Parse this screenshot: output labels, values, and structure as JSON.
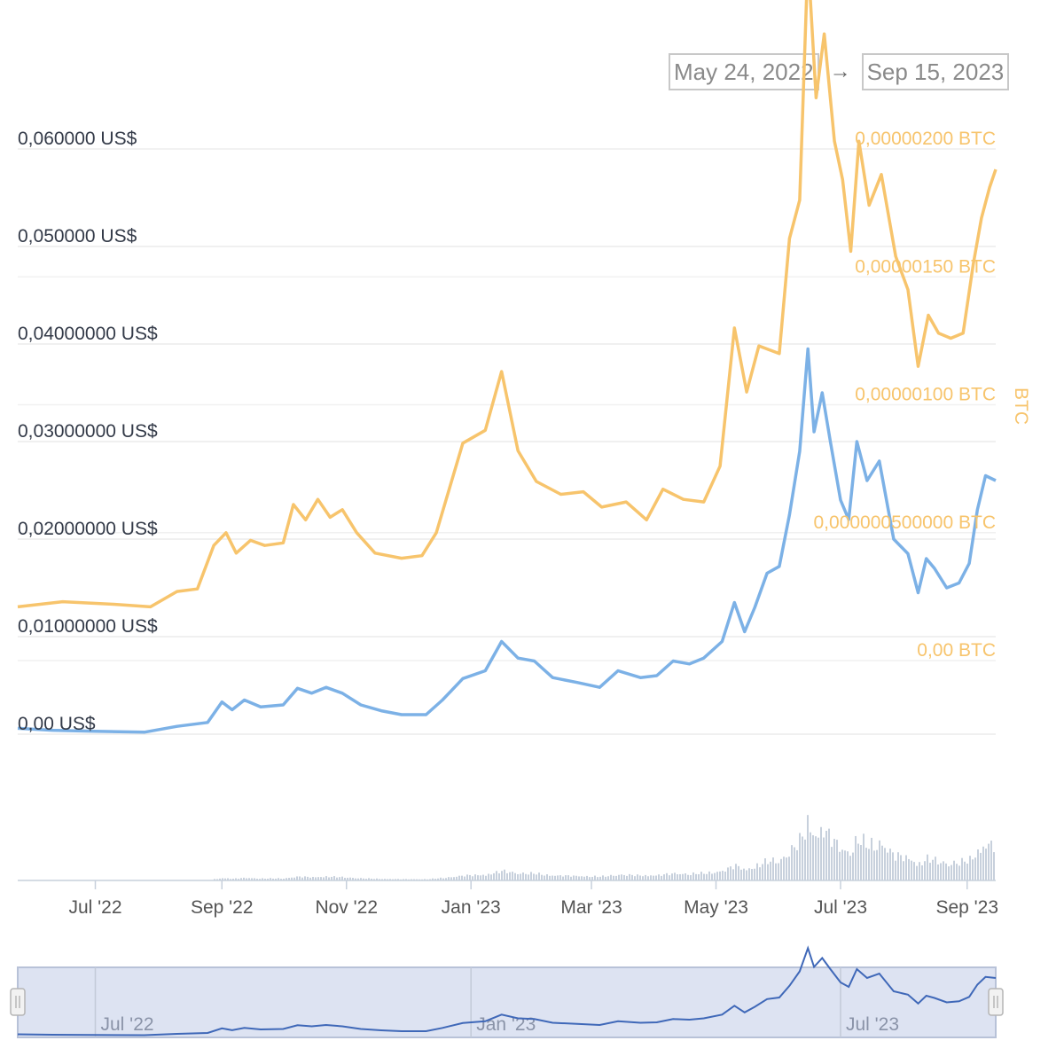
{
  "date_range": {
    "from": "May 24, 2022",
    "arrow": "→",
    "to": "Sep 15, 2023"
  },
  "colors": {
    "usd_line": "#7cb1e6",
    "btc_line": "#f7c46c",
    "volume": "#c7d0dc",
    "navigator": "#3f68b8"
  },
  "chart_data": {
    "type": "line",
    "x_range": [
      "2022-05-24",
      "2023-09-15"
    ],
    "y_left": {
      "label": "",
      "ticks": [
        "0,060000 US$",
        "0,050000 US$",
        "0,04000000 US$",
        "0,03000000 US$",
        "0,02000000 US$",
        "0,01000000 US$",
        "0,00 US$"
      ],
      "tick_values": [
        0.06,
        0.05,
        0.04,
        0.03,
        0.02,
        0.01,
        0
      ],
      "range": [
        0,
        0.06
      ]
    },
    "y_right": {
      "label": "BTC",
      "ticks": [
        "0,00000200 BTC",
        "0,00000150 BTC",
        "0,00000100 BTC",
        "0,000000500000 BTC",
        "0,00 BTC"
      ],
      "tick_values": [
        2e-06,
        1.5e-06,
        1e-06,
        5e-07,
        0
      ],
      "range": [
        0,
        2e-06
      ]
    },
    "x_ticks": [
      "Jul '22",
      "Sep '22",
      "Nov '22",
      "Jan '23",
      "Mar '23",
      "May '23",
      "Jul '23",
      "Sep '23"
    ],
    "x_tick_dates": [
      "2022-07-01",
      "2022-09-01",
      "2022-11-01",
      "2023-01-01",
      "2023-03-01",
      "2023-05-01",
      "2023-07-01",
      "2023-09-01"
    ],
    "series": [
      {
        "axis": "left",
        "points": [
          [
            "2022-05-24",
            0.0006
          ],
          [
            "2022-06-10",
            0.0004
          ],
          [
            "2022-07-01",
            0.0003
          ],
          [
            "2022-07-25",
            0.0002
          ],
          [
            "2022-08-10",
            0.0008
          ],
          [
            "2022-08-25",
            0.0012
          ],
          [
            "2022-09-01",
            0.0033
          ],
          [
            "2022-09-06",
            0.0025
          ],
          [
            "2022-09-12",
            0.0035
          ],
          [
            "2022-09-20",
            0.0028
          ],
          [
            "2022-10-01",
            0.003
          ],
          [
            "2022-10-08",
            0.0047
          ],
          [
            "2022-10-15",
            0.0042
          ],
          [
            "2022-10-22",
            0.0048
          ],
          [
            "2022-10-30",
            0.0042
          ],
          [
            "2022-11-08",
            0.003
          ],
          [
            "2022-11-18",
            0.0024
          ],
          [
            "2022-11-28",
            0.002
          ],
          [
            "2022-12-10",
            0.002
          ],
          [
            "2022-12-18",
            0.0035
          ],
          [
            "2022-12-28",
            0.0057
          ],
          [
            "2023-01-08",
            0.0065
          ],
          [
            "2023-01-16",
            0.0095
          ],
          [
            "2023-01-24",
            0.0078
          ],
          [
            "2023-02-01",
            0.0075
          ],
          [
            "2023-02-10",
            0.0058
          ],
          [
            "2023-02-22",
            0.0053
          ],
          [
            "2023-03-05",
            0.0048
          ],
          [
            "2023-03-14",
            0.0065
          ],
          [
            "2023-03-25",
            0.0058
          ],
          [
            "2023-04-02",
            0.006
          ],
          [
            "2023-04-10",
            0.0075
          ],
          [
            "2023-04-18",
            0.0072
          ],
          [
            "2023-04-25",
            0.0078
          ],
          [
            "2023-05-04",
            0.0095
          ],
          [
            "2023-05-10",
            0.0135
          ],
          [
            "2023-05-15",
            0.0105
          ],
          [
            "2023-05-20",
            0.013
          ],
          [
            "2023-05-26",
            0.0165
          ],
          [
            "2023-06-01",
            0.0172
          ],
          [
            "2023-06-06",
            0.0225
          ],
          [
            "2023-06-11",
            0.029
          ],
          [
            "2023-06-15",
            0.0395
          ],
          [
            "2023-06-18",
            0.031
          ],
          [
            "2023-06-22",
            0.035
          ],
          [
            "2023-06-26",
            0.03
          ],
          [
            "2023-07-01",
            0.024
          ],
          [
            "2023-07-05",
            0.022
          ],
          [
            "2023-07-09",
            0.03
          ],
          [
            "2023-07-14",
            0.026
          ],
          [
            "2023-07-20",
            0.028
          ],
          [
            "2023-07-27",
            0.02
          ],
          [
            "2023-08-03",
            0.0185
          ],
          [
            "2023-08-08",
            0.0145
          ],
          [
            "2023-08-12",
            0.018
          ],
          [
            "2023-08-16",
            0.017
          ],
          [
            "2023-08-22",
            0.015
          ],
          [
            "2023-08-28",
            0.0155
          ],
          [
            "2023-09-02",
            0.0175
          ],
          [
            "2023-09-06",
            0.023
          ],
          [
            "2023-09-10",
            0.0265
          ],
          [
            "2023-09-15",
            0.026
          ]
        ]
      },
      {
        "axis": "right",
        "points": [
          [
            "2022-05-24",
            2.1e-07
          ],
          [
            "2022-06-15",
            2.3e-07
          ],
          [
            "2022-07-10",
            2.2e-07
          ],
          [
            "2022-07-28",
            2.1e-07
          ],
          [
            "2022-08-10",
            2.7e-07
          ],
          [
            "2022-08-20",
            2.8e-07
          ],
          [
            "2022-08-28",
            4.5e-07
          ],
          [
            "2022-09-03",
            5e-07
          ],
          [
            "2022-09-08",
            4.2e-07
          ],
          [
            "2022-09-15",
            4.7e-07
          ],
          [
            "2022-09-22",
            4.5e-07
          ],
          [
            "2022-10-01",
            4.6e-07
          ],
          [
            "2022-10-06",
            6.1e-07
          ],
          [
            "2022-10-12",
            5.5e-07
          ],
          [
            "2022-10-18",
            6.3e-07
          ],
          [
            "2022-10-24",
            5.6e-07
          ],
          [
            "2022-10-30",
            5.9e-07
          ],
          [
            "2022-11-06",
            5e-07
          ],
          [
            "2022-11-15",
            4.2e-07
          ],
          [
            "2022-11-28",
            4e-07
          ],
          [
            "2022-12-08",
            4.1e-07
          ],
          [
            "2022-12-15",
            5e-07
          ],
          [
            "2022-12-28",
            8.5e-07
          ],
          [
            "2023-01-08",
            9e-07
          ],
          [
            "2023-01-16",
            1.13e-06
          ],
          [
            "2023-01-24",
            8.2e-07
          ],
          [
            "2023-02-02",
            7e-07
          ],
          [
            "2023-02-14",
            6.5e-07
          ],
          [
            "2023-02-25",
            6.6e-07
          ],
          [
            "2023-03-06",
            6e-07
          ],
          [
            "2023-03-18",
            6.2e-07
          ],
          [
            "2023-03-28",
            5.5e-07
          ],
          [
            "2023-04-05",
            6.7e-07
          ],
          [
            "2023-04-15",
            6.3e-07
          ],
          [
            "2023-04-25",
            6.2e-07
          ],
          [
            "2023-05-03",
            7.6e-07
          ],
          [
            "2023-05-10",
            1.3e-06
          ],
          [
            "2023-05-16",
            1.05e-06
          ],
          [
            "2023-05-22",
            1.23e-06
          ],
          [
            "2023-06-01",
            1.2e-06
          ],
          [
            "2023-06-06",
            1.65e-06
          ],
          [
            "2023-06-11",
            1.8e-06
          ],
          [
            "2023-06-15",
            2.75e-06
          ],
          [
            "2023-06-19",
            2.2e-06
          ],
          [
            "2023-06-23",
            2.45e-06
          ],
          [
            "2023-06-28",
            2.03e-06
          ],
          [
            "2023-07-02",
            1.88e-06
          ],
          [
            "2023-07-06",
            1.6e-06
          ],
          [
            "2023-07-10",
            2.03e-06
          ],
          [
            "2023-07-15",
            1.78e-06
          ],
          [
            "2023-07-21",
            1.9e-06
          ],
          [
            "2023-07-28",
            1.58e-06
          ],
          [
            "2023-08-03",
            1.45e-06
          ],
          [
            "2023-08-08",
            1.15e-06
          ],
          [
            "2023-08-13",
            1.35e-06
          ],
          [
            "2023-08-18",
            1.28e-06
          ],
          [
            "2023-08-24",
            1.26e-06
          ],
          [
            "2023-08-30",
            1.28e-06
          ],
          [
            "2023-09-04",
            1.55e-06
          ],
          [
            "2023-09-08",
            1.73e-06
          ],
          [
            "2023-09-12",
            1.85e-06
          ],
          [
            "2023-09-15",
            1.92e-06
          ]
        ]
      }
    ],
    "navigator": {
      "x_ticks": [
        "Jul '22",
        "Jan '23",
        "Jul '23"
      ],
      "x_tick_dates": [
        "2022-07-01",
        "2023-01-01",
        "2023-07-01"
      ]
    }
  }
}
